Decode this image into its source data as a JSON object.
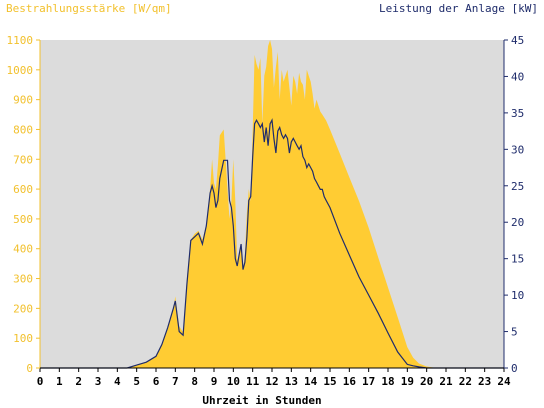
{
  "chart_data": {
    "type": "area",
    "title_left": "Bestrahlungsstärke [W/qm]",
    "title_right": "Leistung der Anlage [kW]",
    "xlabel": "Uhrzeit in Stunden",
    "xlim": [
      0,
      24
    ],
    "x_ticks": [
      "0",
      "1",
      "2",
      "3",
      "4",
      "5",
      "6",
      "7",
      "8",
      "9",
      "10",
      "11",
      "12",
      "13",
      "14",
      "15",
      "16",
      "17",
      "18",
      "19",
      "20",
      "21",
      "22",
      "23",
      "24"
    ],
    "y_left": {
      "lim": [
        0,
        1100
      ],
      "ticks": [
        "0",
        "100",
        "200",
        "300",
        "400",
        "500",
        "600",
        "700",
        "800",
        "900",
        "1000",
        "1100"
      ]
    },
    "y_right": {
      "lim": [
        0,
        45
      ],
      "ticks": [
        "0",
        "5",
        "10",
        "15",
        "20",
        "25",
        "30",
        "35",
        "40",
        "45"
      ]
    },
    "grid": false,
    "series": [
      {
        "name": "Bestrahlungsstärke [W/qm]",
        "axis": "left",
        "kind": "area",
        "color": "#FFCC33",
        "x": [
          0,
          4.5,
          5,
          5.5,
          6,
          6.3,
          6.6,
          6.9,
          7.0,
          7.2,
          7.4,
          7.6,
          7.8,
          8.0,
          8.2,
          8.4,
          8.6,
          8.8,
          8.9,
          9.0,
          9.1,
          9.2,
          9.3,
          9.5,
          9.7,
          9.8,
          9.9,
          10.0,
          10.1,
          10.2,
          10.3,
          10.4,
          10.5,
          10.6,
          10.7,
          10.8,
          10.9,
          11.0,
          11.1,
          11.2,
          11.3,
          11.4,
          11.5,
          11.6,
          11.7,
          11.8,
          11.9,
          12.0,
          12.1,
          12.2,
          12.3,
          12.4,
          12.5,
          12.6,
          12.7,
          12.8,
          12.9,
          13.0,
          13.1,
          13.2,
          13.3,
          13.4,
          13.5,
          13.6,
          13.7,
          13.8,
          13.9,
          14.0,
          14.1,
          14.2,
          14.3,
          14.4,
          14.5,
          14.6,
          14.7,
          14.8,
          15.0,
          15.5,
          16.0,
          16.5,
          17.0,
          17.5,
          18.0,
          18.5,
          19.0,
          19.3,
          19.6,
          20.0,
          20.3,
          20.6,
          21,
          24
        ],
        "y": [
          0,
          0,
          10,
          20,
          40,
          80,
          130,
          200,
          240,
          140,
          120,
          300,
          430,
          450,
          460,
          430,
          480,
          600,
          700,
          620,
          600,
          680,
          780,
          800,
          600,
          500,
          560,
          700,
          560,
          360,
          380,
          420,
          330,
          380,
          520,
          600,
          560,
          800,
          1050,
          1020,
          1000,
          1040,
          820,
          980,
          1010,
          1080,
          1100,
          1070,
          940,
          1010,
          1060,
          900,
          1000,
          960,
          980,
          1000,
          940,
          880,
          980,
          960,
          920,
          990,
          960,
          950,
          900,
          1000,
          980,
          960,
          920,
          870,
          900,
          880,
          860,
          850,
          840,
          830,
          800,
          720,
          640,
          560,
          470,
          370,
          270,
          170,
          70,
          35,
          15,
          5,
          2,
          0,
          0,
          0
        ]
      },
      {
        "name": "Leistung der Anlage [kW]",
        "axis": "right",
        "kind": "line",
        "color": "#1F2C6B",
        "x": [
          0,
          4.5,
          5,
          5.5,
          6,
          6.3,
          6.6,
          6.9,
          7.0,
          7.2,
          7.4,
          7.6,
          7.8,
          8.0,
          8.2,
          8.4,
          8.6,
          8.8,
          8.9,
          9.0,
          9.1,
          9.2,
          9.3,
          9.5,
          9.7,
          9.8,
          9.9,
          10.0,
          10.1,
          10.2,
          10.3,
          10.4,
          10.5,
          10.6,
          10.7,
          10.8,
          10.9,
          11.0,
          11.1,
          11.2,
          11.3,
          11.4,
          11.5,
          11.6,
          11.7,
          11.8,
          11.9,
          12.0,
          12.1,
          12.2,
          12.3,
          12.4,
          12.5,
          12.6,
          12.7,
          12.8,
          12.9,
          13.0,
          13.1,
          13.2,
          13.3,
          13.4,
          13.5,
          13.6,
          13.7,
          13.8,
          13.9,
          14.0,
          14.1,
          14.2,
          14.3,
          14.4,
          14.5,
          14.6,
          14.7,
          14.8,
          15.0,
          15.5,
          16.0,
          16.5,
          17.0,
          17.5,
          18.0,
          18.5,
          19.0,
          19.3,
          19.6,
          20.0,
          20.3,
          20.6,
          21,
          24
        ],
        "y": [
          0,
          0,
          0.4,
          0.8,
          1.6,
          3.2,
          5.5,
          8.2,
          9.2,
          5.0,
          4.5,
          11.5,
          17.5,
          18.0,
          18.5,
          17.0,
          19.5,
          24.0,
          25.0,
          24.0,
          22.0,
          23.0,
          26.0,
          28.5,
          28.5,
          23.0,
          22.0,
          19.5,
          15.0,
          14.0,
          15.5,
          17.0,
          13.5,
          14.5,
          18.0,
          23.0,
          23.5,
          29.0,
          33.5,
          34.0,
          33.5,
          33.0,
          33.5,
          31.0,
          33.0,
          30.5,
          33.5,
          34.0,
          31.5,
          29.5,
          32.5,
          33.0,
          32.0,
          31.5,
          32.0,
          31.5,
          29.5,
          31.0,
          31.5,
          31.0,
          30.5,
          30.0,
          30.5,
          29.0,
          28.5,
          27.5,
          28.0,
          27.5,
          27.0,
          26.0,
          25.5,
          25.0,
          24.5,
          24.5,
          23.5,
          23.0,
          22.0,
          18.5,
          15.5,
          12.5,
          10.0,
          7.5,
          4.8,
          2.2,
          0.5,
          0.3,
          0.15,
          0,
          0,
          0,
          0,
          0
        ]
      }
    ]
  }
}
